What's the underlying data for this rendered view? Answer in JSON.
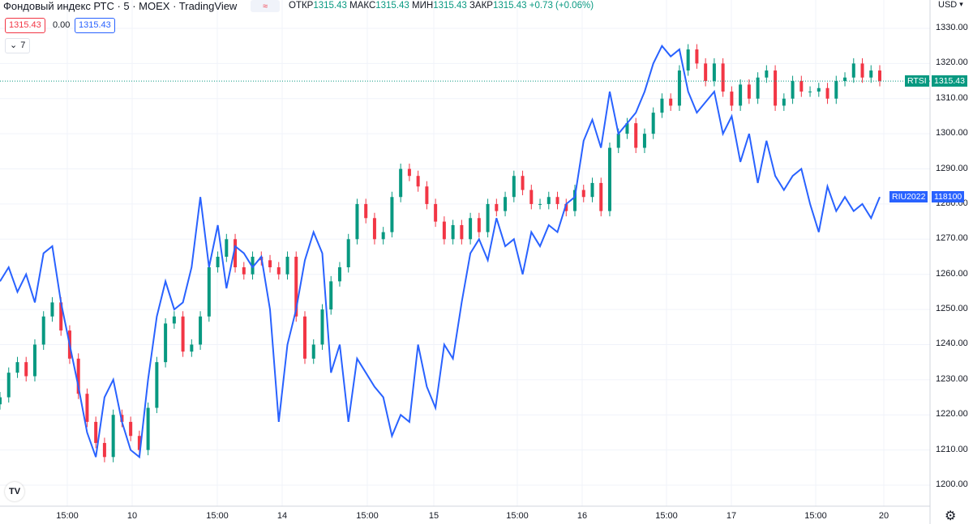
{
  "header": {
    "title": "Фондовый индекс РТС · 5 · MOEX · TradingView",
    "compare_symbol": "≈",
    "ohlc": {
      "open_label": "ОТКР",
      "open": "1315.43",
      "high_label": "МАКС",
      "high": "1315.43",
      "low_label": "МИН",
      "low": "1315.43",
      "close_label": "ЗАКР",
      "close": "1315.43",
      "change": "+0.73 (+0.06%)"
    },
    "bid": "1315.43",
    "spread": "0.00",
    "ask": "1315.43",
    "collapse_count": "7"
  },
  "axis": {
    "currency": "USD",
    "y_ticks": [
      "1330.00",
      "1320.00",
      "1310.00",
      "1300.00",
      "1290.00",
      "1280.00",
      "1270.00",
      "1260.00",
      "1250.00",
      "1240.00",
      "1230.00",
      "1220.00",
      "1210.00",
      "1200.00"
    ],
    "x_ticks": [
      "15:00",
      "10",
      "15:00",
      "14",
      "15:00",
      "15",
      "15:00",
      "16",
      "15:00",
      "17",
      "15:00",
      "20"
    ]
  },
  "tags": {
    "rtsi_name": "RTSI",
    "rtsi_value": "1315.43",
    "riu_name": "RIU2022",
    "riu_value": "118100"
  },
  "colors": {
    "up": "#089981",
    "down": "#f23645",
    "compare": "#2962ff",
    "grid": "#f0f3fa"
  },
  "chart_data": {
    "type": "line",
    "ylim": [
      1195,
      1335
    ],
    "x_labels": [
      "15:00",
      "10",
      "15:00",
      "14",
      "15:00",
      "15",
      "15:00",
      "16",
      "15:00",
      "17",
      "15:00",
      "20"
    ],
    "series": [
      {
        "name": "RTSI",
        "style": "candles",
        "values": [
          1225,
          1232,
          1235,
          1231,
          1240,
          1248,
          1252,
          1244,
          1236,
          1226,
          1218,
          1212,
          1208,
          1220,
          1218,
          1214,
          1210,
          1222,
          1235,
          1246,
          1248,
          1238,
          1240,
          1248,
          1262,
          1265,
          1270,
          1262,
          1260,
          1265,
          1264,
          1262,
          1260,
          1265,
          1248,
          1236,
          1240,
          1250,
          1258,
          1262,
          1270,
          1280,
          1276,
          1270,
          1272,
          1282,
          1290,
          1288,
          1285,
          1280,
          1275,
          1270,
          1274,
          1270,
          1276,
          1272,
          1280,
          1278,
          1282,
          1288,
          1284,
          1280,
          1280,
          1282,
          1280,
          1278,
          1284,
          1282,
          1286,
          1278,
          1296,
          1300,
          1303,
          1296,
          1300,
          1306,
          1310,
          1308,
          1318,
          1324,
          1320,
          1315,
          1320,
          1312,
          1308,
          1314,
          1310,
          1316,
          1318,
          1308,
          1310,
          1315,
          1312,
          1312,
          1313,
          1310,
          1315,
          1316,
          1320,
          1316,
          1318,
          1315
        ]
      },
      {
        "name": "RIU2022",
        "style": "line",
        "values": [
          1258,
          1262,
          1255,
          1260,
          1252,
          1266,
          1268,
          1252,
          1240,
          1228,
          1215,
          1208,
          1225,
          1230,
          1218,
          1210,
          1208,
          1230,
          1248,
          1258,
          1250,
          1252,
          1262,
          1282,
          1262,
          1274,
          1256,
          1268,
          1266,
          1262,
          1265,
          1250,
          1218,
          1240,
          1250,
          1264,
          1272,
          1266,
          1232,
          1240,
          1218,
          1236,
          1232,
          1228,
          1225,
          1214,
          1220,
          1218,
          1240,
          1228,
          1222,
          1240,
          1236,
          1252,
          1266,
          1270,
          1264,
          1276,
          1268,
          1270,
          1260,
          1272,
          1268,
          1274,
          1272,
          1280,
          1282,
          1298,
          1304,
          1296,
          1312,
          1300,
          1303,
          1306,
          1312,
          1320,
          1325,
          1322,
          1324,
          1312,
          1306,
          1309,
          1312,
          1300,
          1305,
          1292,
          1300,
          1286,
          1298,
          1288,
          1284,
          1288,
          1290,
          1280,
          1272,
          1285,
          1278,
          1282,
          1278,
          1280,
          1276,
          1282
        ]
      }
    ]
  }
}
